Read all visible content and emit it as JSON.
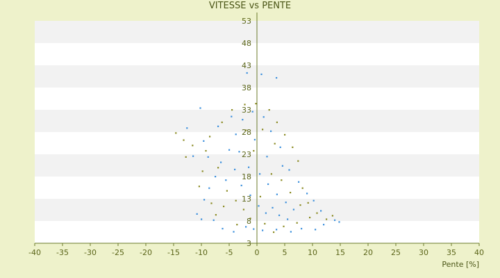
{
  "chart_data": {
    "type": "scatter",
    "title": "VITESSE vs PENTE",
    "xlabel": "Pente [%]",
    "ylabel": "",
    "xlim": [
      -40,
      40
    ],
    "ylim": [
      3,
      53
    ],
    "x_ticks": [
      "-40",
      "-35",
      "-30",
      "-25",
      "-20",
      "-15",
      "-10",
      "-5",
      "0",
      "5",
      "10",
      "15",
      "20",
      "25",
      "30",
      "35",
      "40"
    ],
    "y_ticks": [
      "3",
      "8",
      "13",
      "18",
      "23",
      "28",
      "33",
      "38",
      "43",
      "48",
      "53"
    ],
    "grid": "horizontal bands",
    "legend": "none",
    "colors": {
      "series_blue": "#3b8fdc",
      "series_olive": "#8a8a22",
      "band_light": "#ffffff",
      "band_shade": "#f2f2f2",
      "background": "#eef2cb",
      "axis_line": "#6b7a2a"
    },
    "series": [
      {
        "color": "#3b8fdc",
        "points": [
          [
            -10.2,
            33.4
          ],
          [
            -1.8,
            41.3
          ],
          [
            3.5,
            40.2
          ],
          [
            0.8,
            41.0
          ],
          [
            -12.6,
            28.9
          ],
          [
            -11.5,
            22.6
          ],
          [
            -10.8,
            9.6
          ],
          [
            -10.0,
            8.4
          ],
          [
            -7.8,
            8.2
          ],
          [
            -6.2,
            6.3
          ],
          [
            -4.2,
            5.6
          ],
          [
            -2.0,
            6.7
          ],
          [
            -0.6,
            6.2
          ],
          [
            1.0,
            5.9
          ],
          [
            3.5,
            6.1
          ],
          [
            6.1,
            5.6
          ],
          [
            8.0,
            6.3
          ],
          [
            10.5,
            6.1
          ],
          [
            12.0,
            7.2
          ],
          [
            14.0,
            8.2
          ],
          [
            14.8,
            7.8
          ],
          [
            11.5,
            10.3
          ],
          [
            10.2,
            12.6
          ],
          [
            9.0,
            14.2
          ],
          [
            7.5,
            16.8
          ],
          [
            5.8,
            19.5
          ],
          [
            4.2,
            24.6
          ],
          [
            2.5,
            28.2
          ],
          [
            1.2,
            31.4
          ],
          [
            -0.8,
            32.6
          ],
          [
            -2.6,
            30.8
          ],
          [
            -3.8,
            27.5
          ],
          [
            -5.0,
            24.0
          ],
          [
            -6.5,
            21.2
          ],
          [
            -7.5,
            18.0
          ],
          [
            -8.6,
            15.4
          ],
          [
            -9.5,
            12.8
          ],
          [
            -8.8,
            22.4
          ],
          [
            -9.6,
            26.0
          ],
          [
            -7.0,
            29.3
          ],
          [
            -4.6,
            31.5
          ],
          [
            -1.5,
            20.1
          ],
          [
            0.5,
            18.6
          ],
          [
            2.0,
            16.3
          ],
          [
            3.6,
            14.0
          ],
          [
            5.2,
            12.2
          ],
          [
            6.6,
            10.6
          ],
          [
            -2.8,
            16.0
          ],
          [
            -1.2,
            13.8
          ],
          [
            0.3,
            11.4
          ],
          [
            1.6,
            9.8
          ],
          [
            -4.0,
            19.6
          ],
          [
            -5.6,
            17.2
          ],
          [
            -3.2,
            23.6
          ],
          [
            -0.4,
            26.3
          ],
          [
            1.8,
            22.5
          ],
          [
            4.6,
            20.4
          ],
          [
            2.8,
            11.0
          ],
          [
            4.0,
            9.3
          ],
          [
            5.5,
            8.4
          ]
        ]
      },
      {
        "color": "#8a8a22",
        "points": [
          [
            -14.6,
            27.8
          ],
          [
            -13.2,
            26.2
          ],
          [
            -12.8,
            22.4
          ],
          [
            -11.6,
            25.0
          ],
          [
            -10.4,
            15.8
          ],
          [
            -9.8,
            19.2
          ],
          [
            -8.2,
            12.0
          ],
          [
            -7.4,
            9.4
          ],
          [
            -6.0,
            11.3
          ],
          [
            -3.6,
            7.2
          ],
          [
            -1.2,
            8.6
          ],
          [
            1.4,
            7.4
          ],
          [
            3.0,
            5.5
          ],
          [
            4.8,
            6.8
          ],
          [
            7.2,
            7.6
          ],
          [
            9.5,
            8.8
          ],
          [
            12.5,
            8.4
          ],
          [
            13.6,
            9.2
          ],
          [
            10.8,
            9.8
          ],
          [
            9.2,
            12.1
          ],
          [
            8.2,
            15.4
          ],
          [
            7.4,
            21.5
          ],
          [
            6.4,
            24.6
          ],
          [
            5.0,
            27.4
          ],
          [
            3.6,
            30.2
          ],
          [
            2.2,
            33.0
          ],
          [
            -0.2,
            34.4
          ],
          [
            -2.2,
            34.2
          ],
          [
            -4.5,
            33.0
          ],
          [
            -6.3,
            30.2
          ],
          [
            -8.5,
            27.0
          ],
          [
            -9.2,
            23.8
          ],
          [
            -7.0,
            20.0
          ],
          [
            -5.4,
            14.8
          ],
          [
            -3.8,
            12.6
          ],
          [
            -2.4,
            10.6
          ],
          [
            0.6,
            13.5
          ],
          [
            2.6,
            18.6
          ],
          [
            4.4,
            17.2
          ],
          [
            -0.6,
            23.8
          ],
          [
            -2.0,
            28.4
          ],
          [
            1.0,
            28.6
          ],
          [
            3.2,
            25.4
          ],
          [
            6.0,
            14.4
          ],
          [
            7.8,
            11.6
          ]
        ]
      }
    ]
  }
}
